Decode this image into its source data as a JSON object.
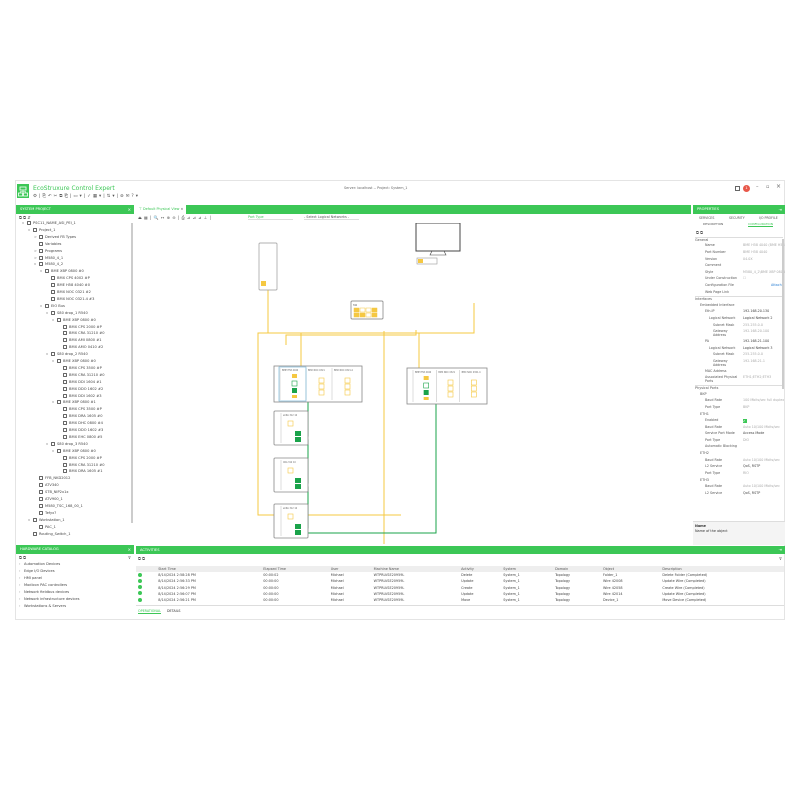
{
  "window": {
    "app_title": "EcoStruxure Control Expert",
    "brand_prefix": "EcoStruxure",
    "server_title": "Server: localhost -- Project: System_1",
    "brand_color": "#3cc756",
    "notification_count": "1",
    "minimize": "–",
    "maximize": "▫",
    "close": "×"
  },
  "toolbar": {
    "icons": [
      "settings-icon",
      "|",
      "new-icon",
      "undo-icon",
      "cut-icon",
      "copy-icon",
      "paste-icon",
      "|",
      "window-icon",
      "|",
      "check-icon",
      "build-icon",
      "|",
      "transfer-icon",
      "|",
      "camera-icon",
      "help-icon"
    ],
    "glyphs": "⚙ | ⎘ ↶ ✂ ⧉ ⎗ | ▭ ▾ | ✓ ▦ ▾ | ⇅ ▾ | ⊚ ✉ ? ▾"
  },
  "system_project": {
    "title": "SYSTEM PROJECT",
    "close": "×",
    "tree": [
      {
        "d": 0,
        "label": "PSC11_NAME_ASI_PEI_1",
        "exp": "v"
      },
      {
        "d": 1,
        "label": "Project_1",
        "exp": "v"
      },
      {
        "d": 2,
        "label": "Derived FB Types",
        "exp": ">"
      },
      {
        "d": 2,
        "label": "Variables",
        "exp": ""
      },
      {
        "d": 2,
        "label": "Programs",
        "exp": ">"
      },
      {
        "d": 2,
        "label": "M580_4_1",
        "exp": ">"
      },
      {
        "d": 2,
        "label": "M580_4_2",
        "exp": "v"
      },
      {
        "d": 3,
        "label": "BME XBP 0800 #0",
        "exp": "v"
      },
      {
        "d": 4,
        "label": "BMX CPS 4002 #P",
        "exp": ""
      },
      {
        "d": 4,
        "label": "BME H58 4040 #0",
        "exp": ""
      },
      {
        "d": 4,
        "label": "BMX NOC 0321 #2",
        "exp": ""
      },
      {
        "d": 4,
        "label": "BMX NOC 0321.4 #3",
        "exp": ""
      },
      {
        "d": 3,
        "label": "EIO Bus",
        "exp": "v"
      },
      {
        "d": 4,
        "label": "S80 drop_1 R540",
        "exp": "v"
      },
      {
        "d": 5,
        "label": "BME XBP 0800 #0",
        "exp": "v"
      },
      {
        "d": 6,
        "label": "BMX CPS 2000 #P",
        "exp": ""
      },
      {
        "d": 6,
        "label": "BMX CRA 31210 #0",
        "exp": ""
      },
      {
        "d": 6,
        "label": "BMX AMI 0800 #1",
        "exp": ""
      },
      {
        "d": 6,
        "label": "BMX AMO 0410 #2",
        "exp": ""
      },
      {
        "d": 4,
        "label": "S80 drop_2 R540",
        "exp": "v"
      },
      {
        "d": 5,
        "label": "BME XBP 0800 #0",
        "exp": "v"
      },
      {
        "d": 6,
        "label": "BMX CPS 3500 #P",
        "exp": ""
      },
      {
        "d": 6,
        "label": "BMX CRA 31210 #0",
        "exp": ""
      },
      {
        "d": 6,
        "label": "BMX DDI 1604 #1",
        "exp": ""
      },
      {
        "d": 6,
        "label": "BMX DDO 1602 #2",
        "exp": ""
      },
      {
        "d": 6,
        "label": "BMX DDI 1602 #3",
        "exp": ""
      },
      {
        "d": 5,
        "label": "BME XBP 0800 #1",
        "exp": "v"
      },
      {
        "d": 6,
        "label": "BMX CPS 3500 #P",
        "exp": ""
      },
      {
        "d": 6,
        "label": "BMX DRA 1605 #0",
        "exp": ""
      },
      {
        "d": 6,
        "label": "BMX DHC 0800 #4",
        "exp": ""
      },
      {
        "d": 6,
        "label": "BMX DDO 1602 #3",
        "exp": ""
      },
      {
        "d": 6,
        "label": "BMX EHC 0800 #5",
        "exp": ""
      },
      {
        "d": 4,
        "label": "S80 drop_3 R540",
        "exp": "v"
      },
      {
        "d": 5,
        "label": "BME XBP 0800 #0",
        "exp": "v"
      },
      {
        "d": 6,
        "label": "BMX CPS 2000 #P",
        "exp": ""
      },
      {
        "d": 6,
        "label": "BMX CRA 31210 #0",
        "exp": ""
      },
      {
        "d": 6,
        "label": "BMX DRA 1605 #1",
        "exp": ""
      },
      {
        "d": 2,
        "label": "FFB_NKD2012",
        "exp": ""
      },
      {
        "d": 2,
        "label": "ATV340",
        "exp": ""
      },
      {
        "d": 2,
        "label": "STB_NIP2x1x",
        "exp": ""
      },
      {
        "d": 2,
        "label": "ATV900_1",
        "exp": ""
      },
      {
        "d": 2,
        "label": "M580_TSC_168_00_1",
        "exp": ""
      },
      {
        "d": 2,
        "label": "Tefyx?",
        "exp": ""
      },
      {
        "d": 1,
        "label": "Workstation_1",
        "exp": "v"
      },
      {
        "d": 2,
        "label": "PAC_1",
        "exp": ""
      },
      {
        "d": 1,
        "label": "Routing_Switch_1",
        "exp": ""
      }
    ]
  },
  "catalog": {
    "title": "HARDWARE CATALOG",
    "close": "×",
    "items": [
      "Automation Devices",
      "Edge I/O Devices",
      "HMI panel",
      "Modicon PAC controllers",
      "Network fieldbus devices",
      "Network infrastructure devices",
      "Workstations & Servers"
    ]
  },
  "editor": {
    "tab": "Default Physical View",
    "tab_close": "×",
    "part_type_placeholder": "Part Type",
    "logical_network_placeholder": "- Select Logical Networks -",
    "tools": "⏏ ▦ | 🔍 ↔ ⊕ ⊖ | ⎙ ⊿ ⊿ ⊿ ⊥ |",
    "devices": {
      "switch": "SW",
      "rack1": [
        "BME H58 4040",
        "BMX NOC 0321",
        "BMX NOC 0321.4"
      ],
      "rack2": [
        "BME H58 4040",
        "BMX NOC 0321",
        "BMX NOC 0321.4"
      ],
      "drops": [
        "eCRA 312 10",
        "CRA 312 10",
        "eCRA 312 10"
      ]
    },
    "link_colors": {
      "ethernet": "#f5c842",
      "rio": "#1aa34a"
    }
  },
  "properties": {
    "title": "PROPERTIES",
    "tabs": [
      "SERVICES",
      "SECURITY",
      "I/O PROFILE"
    ],
    "subtabs": [
      "DESCRIPTION",
      "CONFIGURATION"
    ],
    "active_subtab": "CONFIGURATION",
    "rows": [
      {
        "t": "g",
        "k": "General",
        "d": 0
      },
      {
        "k": "Name",
        "v": "BME H58 4040 (BME H58 4040)",
        "d": 2
      },
      {
        "k": "Part Number",
        "v": "BME H58 4040",
        "d": 2
      },
      {
        "k": "Version",
        "v": "04.0X",
        "d": 2
      },
      {
        "k": "Comment",
        "v": "",
        "d": 2
      },
      {
        "k": "Style",
        "v": "M580_4_2\\BME XBP 0800",
        "d": 2
      },
      {
        "k": "Under Construction",
        "v": "☐",
        "d": 2
      },
      {
        "k": "Configuration File",
        "v": "Attach",
        "d": 2,
        "link": true
      },
      {
        "k": "Web Page Link",
        "v": "",
        "d": 2
      },
      {
        "t": "g",
        "k": "Interfaces",
        "d": 0
      },
      {
        "t": "g",
        "k": "Embedded Interface",
        "d": 1
      },
      {
        "k": "Eth.IP",
        "v": "192.168.20.130",
        "d": 2,
        "dark": true
      },
      {
        "k": "Logical Network",
        "v": "Logical Network 2",
        "d": 3,
        "dark": true
      },
      {
        "k": "Subnet Mask",
        "v": "255.255.0.0",
        "d": 4
      },
      {
        "k": "Gateway Address",
        "v": "192.168.20.100",
        "d": 4
      },
      {
        "k": "PA",
        "v": "192.168.21.100",
        "d": 2,
        "dark": true
      },
      {
        "k": "Logical Network",
        "v": "Logical Network 3",
        "d": 3,
        "dark": true
      },
      {
        "k": "Subnet Mask",
        "v": "255.255.0.0",
        "d": 4
      },
      {
        "k": "Gateway Address",
        "v": "192.168.21.1",
        "d": 4
      },
      {
        "k": "MAC Address",
        "v": "",
        "d": 2
      },
      {
        "k": "Associated Physical Ports",
        "v": "ETH1;ETH2;ETH3",
        "d": 2
      },
      {
        "t": "g",
        "k": "Physical Ports",
        "d": 0
      },
      {
        "t": "g",
        "k": "BKP",
        "d": 1
      },
      {
        "k": "Baud Rate",
        "v": "100 Mbits/sec full duplex",
        "d": 2
      },
      {
        "k": "Port Type",
        "v": "BKP",
        "d": 2
      },
      {
        "t": "g",
        "k": "ETH1",
        "d": 1
      },
      {
        "k": "Enabled",
        "v": "✔",
        "d": 2,
        "check": true
      },
      {
        "k": "Baud Rate",
        "v": "Auto 10/100 Mbits/sec",
        "d": 2
      },
      {
        "k": "Service Port Mode",
        "v": "Access Mode",
        "d": 2,
        "dark": true
      },
      {
        "k": "Port Type",
        "v": "DIO",
        "d": 2
      },
      {
        "k": "Automatic Blocking",
        "v": "",
        "d": 2
      },
      {
        "t": "g",
        "k": "ETH2",
        "d": 1
      },
      {
        "k": "Baud Rate",
        "v": "Auto 10/100 Mbits/sec",
        "d": 2
      },
      {
        "k": "L2 Service",
        "v": "QoS, RSTP",
        "d": 2,
        "dark": true
      },
      {
        "k": "Port Type",
        "v": "RIO",
        "d": 2
      },
      {
        "t": "g",
        "k": "ETH3",
        "d": 1
      },
      {
        "k": "Baud Rate",
        "v": "Auto 10/100 Mbits/sec",
        "d": 2
      },
      {
        "k": "L2 Service",
        "v": "QoS, RSTP",
        "d": 2,
        "dark": true
      }
    ],
    "help_title": "Name",
    "help_text": "Name of the object"
  },
  "activities": {
    "title": "ACTIVITIES",
    "columns": [
      "Start Time",
      "Elapsed Time",
      "User",
      "Machine Name",
      "Activity",
      "System",
      "Domain",
      "Object",
      "Description"
    ],
    "rows": [
      [
        "8/14/2024 2:58:28 PM",
        "00:00:02",
        "Michael",
        "WTPRLVSE20959L",
        "Delete",
        "System_1",
        "Topology",
        "Folder_1",
        "Delete Folder (Completed)"
      ],
      [
        "8/14/2024 2:56:33 PM",
        "00:00:00",
        "Michael",
        "WTPRLVSE20959L",
        "Update",
        "System_1",
        "Topology",
        "Wire 42008",
        "Update Wire (Completed)"
      ],
      [
        "8/14/2024 2:56:29 PM",
        "00:00:00",
        "Michael",
        "WTPRLVSE20959L",
        "Create",
        "System_1",
        "Topology",
        "Wire 42058",
        "Create Wire (Completed)"
      ],
      [
        "8/14/2024 2:56:07 PM",
        "00:00:00",
        "Michael",
        "WTPRLVSE20959L",
        "Update",
        "System_1",
        "Topology",
        "Wire 42014",
        "Update Wire (Completed)"
      ],
      [
        "8/14/2024 2:56:21 PM",
        "00:00:00",
        "Michael",
        "WTPRLVSE20959L",
        "Move",
        "System_1",
        "Topology",
        "Device_1",
        "Move Device (Completed)"
      ]
    ],
    "tabs": [
      "OPERATIONAL",
      "DETAILS"
    ],
    "active_tab": "OPERATIONAL"
  }
}
